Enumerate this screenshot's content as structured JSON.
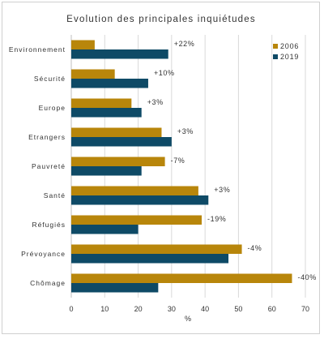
{
  "chart_data": {
    "type": "bar",
    "orientation": "horizontal",
    "title": "Evolution des principales inquiétudes",
    "xlabel": "%",
    "ylabel": "",
    "xlim": [
      0,
      70
    ],
    "xticks": [
      0,
      10,
      20,
      30,
      40,
      50,
      60,
      70
    ],
    "grid": true,
    "legend_position": "top-right",
    "categories": [
      "Environnement",
      "Sécurité",
      "Europe",
      "Etrangers",
      "Pauvreté",
      "Santé",
      "Réfugiés",
      "Prévoyance",
      "Chômage"
    ],
    "series": [
      {
        "name": "2006",
        "color": "#B8860B",
        "values": [
          7,
          13,
          18,
          27,
          28,
          38,
          39,
          51,
          66
        ]
      },
      {
        "name": "2019",
        "color": "#0E4A66",
        "values": [
          29,
          23,
          21,
          30,
          21,
          41,
          20,
          47,
          26
        ]
      }
    ],
    "annotations": [
      "+22%",
      "+10%",
      "+3%",
      "+3%",
      "-7%",
      "+3%",
      "-19%",
      "-4%",
      "-40%"
    ]
  }
}
